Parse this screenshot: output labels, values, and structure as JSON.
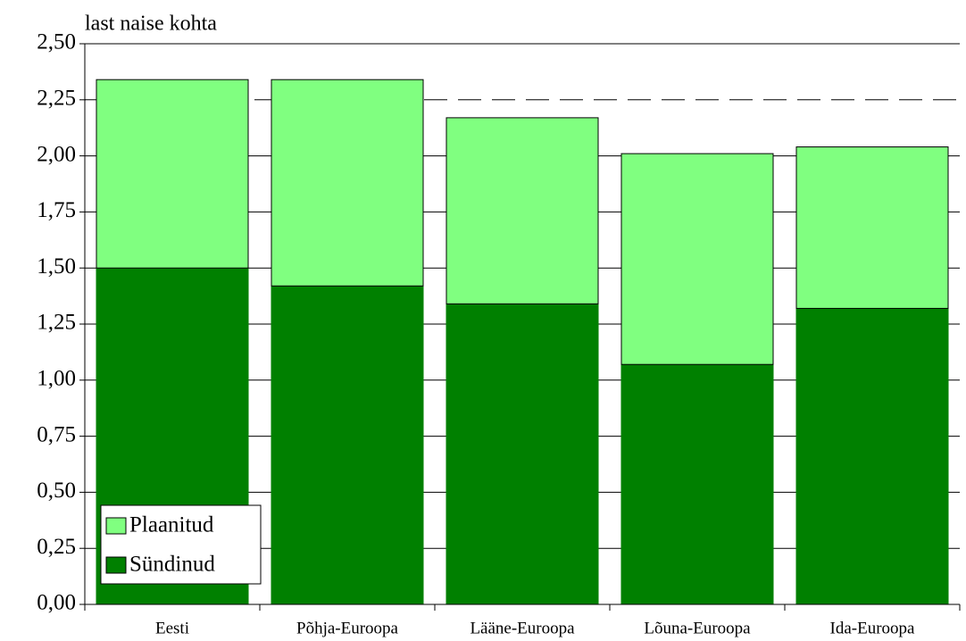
{
  "chart_data": {
    "type": "stacked-bar",
    "title": "last naise kohta",
    "categories": [
      "Eesti",
      "Põhja-Euroopa",
      "Lääne-Euroopa",
      "Lõuna-Euroopa",
      "Ida-Euroopa"
    ],
    "series": [
      {
        "name": "Sündinud",
        "color": "#008000",
        "values": [
          1.5,
          1.42,
          1.34,
          1.07,
          1.32
        ]
      },
      {
        "name": "Plaanitud",
        "color": "#80ff80",
        "values": [
          0.84,
          0.92,
          0.83,
          0.94,
          0.72
        ]
      }
    ],
    "ylim": [
      0,
      2.5
    ],
    "yticks": [
      {
        "value": 0,
        "label": "0,00"
      },
      {
        "value": 0.25,
        "label": "0,25"
      },
      {
        "value": 0.5,
        "label": "0,50"
      },
      {
        "value": 0.75,
        "label": "0,75"
      },
      {
        "value": 1,
        "label": "1,00"
      },
      {
        "value": 1.25,
        "label": "1,25"
      },
      {
        "value": 1.5,
        "label": "1,50"
      },
      {
        "value": 1.75,
        "label": "1,75"
      },
      {
        "value": 2,
        "label": "2,00"
      },
      {
        "value": 2.25,
        "label": "2,25"
      },
      {
        "value": 2.5,
        "label": "2,50"
      }
    ],
    "reference_line": 2.25,
    "grid": true,
    "legend": "lower-left"
  }
}
